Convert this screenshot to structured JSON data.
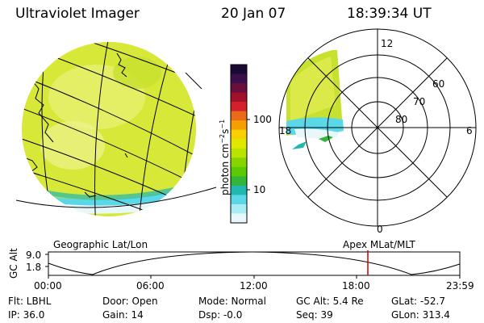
{
  "header": {
    "instrument": "Ultraviolet Imager",
    "date": "20 Jan 07",
    "time": "18:39:34 UT"
  },
  "colorbar": {
    "unit_label": "photon cm",
    "unit_exp": "−2",
    "unit_s": "s",
    "unit_exp2": "−1",
    "tick_labels": [
      "100",
      "10"
    ],
    "colors": [
      "#1a0a33",
      "#3b0f4a",
      "#6a0f3c",
      "#a0102a",
      "#d4202a",
      "#e86a1a",
      "#f5a000",
      "#f8d000",
      "#e0e800",
      "#b8e400",
      "#88d400",
      "#5cc800",
      "#33b43a",
      "#22b8b0",
      "#5ad8e8",
      "#a8ecf4",
      "#e8f8fa"
    ]
  },
  "polar": {
    "lat_labels": [
      "60",
      "70",
      "80"
    ],
    "mlt_labels": [
      "12",
      "18",
      "6",
      "0"
    ]
  },
  "timeline": {
    "axis_label": "GC Alt",
    "y_max": "9.0",
    "y_min": "1.8",
    "left_label": "Geographic Lat/Lon",
    "right_label": "Apex MLat/MLT",
    "ticks": [
      "00:00",
      "06:00",
      "12:00",
      "18:00",
      "23:59"
    ],
    "marker_color": "#cc0000"
  },
  "info": {
    "filter": "Flt: LBHL",
    "ip": "IP: 36.0",
    "door": "Door: Open",
    "gain": "Gain: 14",
    "mode": "Mode: Normal",
    "dsp": "Dsp:   -0.0",
    "gc_alt": "GC Alt: 5.4 Re",
    "seq": "Seq: 39",
    "glat": "GLat: -52.7",
    "glon": "GLon: 313.4"
  }
}
